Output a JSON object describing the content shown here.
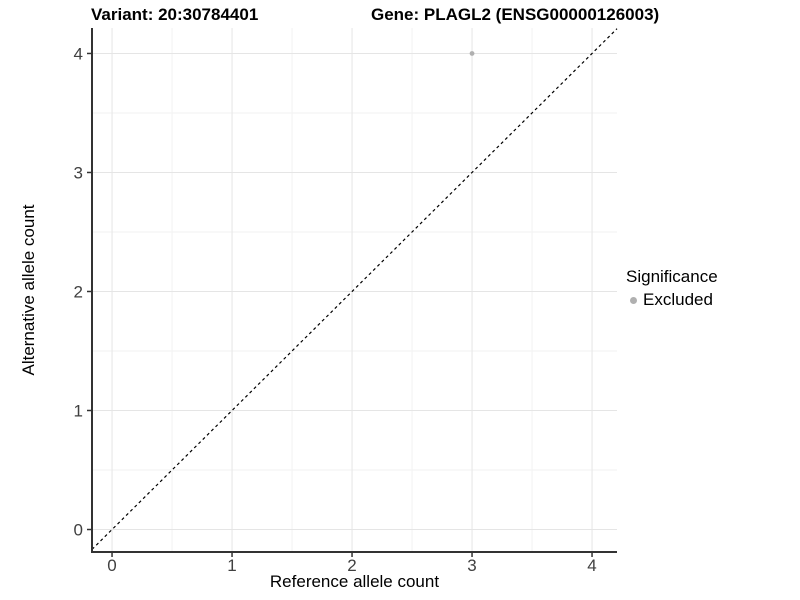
{
  "titles": {
    "variant": "Variant: 20:30784401",
    "gene": "Gene: PLAGL2 (ENSG00000126003)"
  },
  "chart_data": {
    "type": "scatter",
    "xlabel": "Reference allele count",
    "ylabel": "Alternative allele count",
    "xlim": [
      -0.167,
      4.208
    ],
    "ylim": [
      -0.189,
      4.214
    ],
    "xticks": [
      0,
      1,
      2,
      3,
      4
    ],
    "yticks": [
      0,
      1,
      2,
      3,
      4
    ],
    "minor_grid_step": 0.5,
    "grid": true,
    "series": [
      {
        "name": "Excluded",
        "color": "#b0b0b0",
        "points": [
          {
            "x": 3,
            "y": 4
          }
        ]
      }
    ],
    "abline": {
      "kind": "identity",
      "style": "dashed",
      "color": "#000000",
      "dash": "3 3"
    },
    "legend": {
      "title": "Significance",
      "position": "right",
      "items": [
        {
          "label": "Excluded",
          "color": "#b0b0b0"
        }
      ]
    }
  },
  "colors": {
    "background": "#ffffff",
    "grid_major": "#e5e5e5",
    "grid_minor": "#f2f2f2",
    "axis_line": "#333333",
    "tick_mark": "#333333",
    "tick_label": "#404040"
  }
}
